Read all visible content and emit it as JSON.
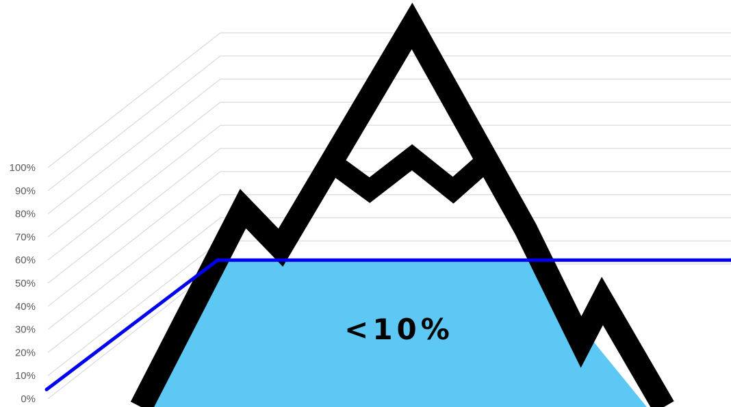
{
  "chart_data": {
    "type": "line",
    "title": "",
    "xlabel": "",
    "ylabel": "",
    "ylim": [
      0,
      100
    ],
    "y_ticks": [
      "0%",
      "10%",
      "20%",
      "30%",
      "40%",
      "50%",
      "60%",
      "70%",
      "80%",
      "90%",
      "100%"
    ],
    "grid": true,
    "series": [
      {
        "values": [
          4,
          60,
          60
        ]
      }
    ],
    "annotations": [
      {
        "text": "<10%"
      }
    ]
  },
  "colors": {
    "line": "#0000f0",
    "water_fill": "#5ec8f5",
    "mountain_outline": "#000000",
    "gridline": "#d9d9d9",
    "tick_text": "#595959"
  },
  "icons": {
    "mountain": "mountain-icon"
  }
}
